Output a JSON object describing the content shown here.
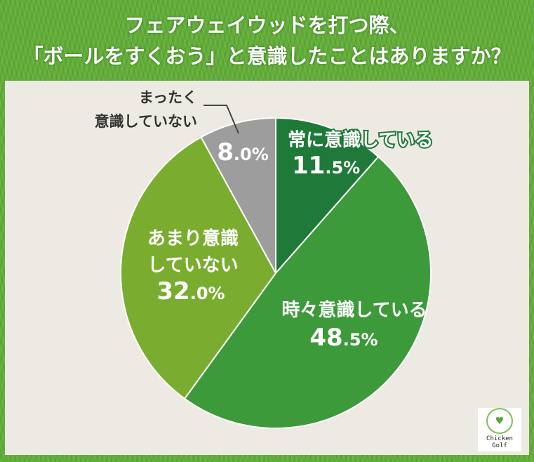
{
  "title": {
    "line1": "フェアウェイウッドを打つ際、",
    "line2": "「ボールをすくおう」と意識したことはありますか？"
  },
  "chart_data": {
    "type": "pie",
    "title": "フェアウェイウッドを打つ際、「ボールをすくおう」と意識したことはありますか？",
    "start": "top, clockwise",
    "slices": [
      {
        "label": "常に意識している",
        "value": 11.5,
        "display": "11.5%",
        "color": "#1f7a3a"
      },
      {
        "label": "時々意識している",
        "value": 48.5,
        "display": "48.5%",
        "color": "#3d9a3b"
      },
      {
        "label": "あまり意識していない",
        "value": 32.0,
        "display": "32.0%",
        "color": "#7aad2f"
      },
      {
        "label": "まったく意識していない",
        "value": 8.0,
        "display": "8.0%",
        "color": "#9d9d9d"
      }
    ],
    "label_lines": [
      [
        "常に意識している"
      ],
      [
        "時々意識している"
      ],
      [
        "あまり意識",
        "していない"
      ],
      [
        "まったく",
        "意識していない"
      ]
    ]
  },
  "logo": {
    "text1": "Chicken",
    "text2": "Golf"
  }
}
